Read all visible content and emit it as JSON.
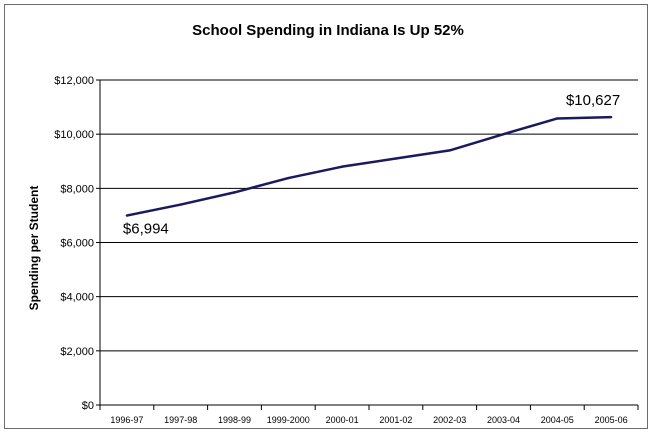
{
  "chart_data": {
    "type": "line",
    "title": "School Spending in Indiana Is Up 52%",
    "xlabel": "",
    "ylabel": "Spending per Student",
    "categories": [
      "1996-97",
      "1997-98",
      "1998-99",
      "1999-2000",
      "2000-01",
      "2001-02",
      "2002-03",
      "2003-04",
      "2004-05",
      "2005-06"
    ],
    "series": [
      {
        "values": [
          6994,
          7400,
          7850,
          8380,
          8800,
          9100,
          9400,
          10000,
          10580,
          10627
        ]
      }
    ],
    "ylim": [
      0,
      12000
    ],
    "yticks": [
      0,
      2000,
      4000,
      6000,
      8000,
      10000,
      12000
    ],
    "ytick_labels": [
      "$0",
      "$2,000",
      "$4,000",
      "$6,000",
      "$8,000",
      "$10,000",
      "$12,000"
    ],
    "annotations": [
      {
        "text": "$6,994",
        "index": 0
      },
      {
        "text": "$10,627",
        "index": 9
      }
    ],
    "grid": true,
    "line_color": "#1a1a5e",
    "grid_color": "#000000"
  }
}
